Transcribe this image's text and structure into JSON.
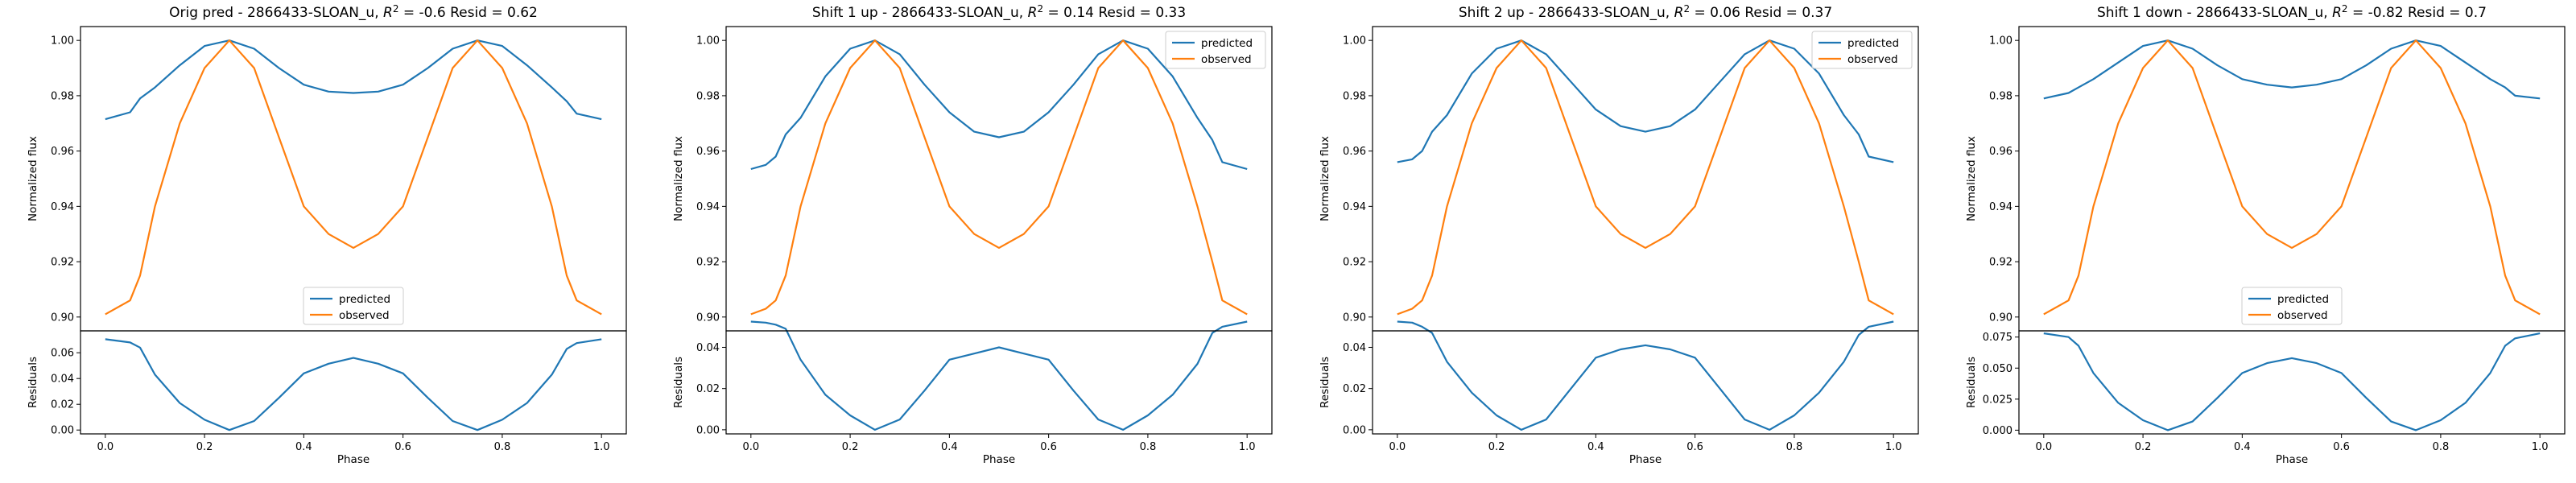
{
  "colors": {
    "predicted": "#1f77b4",
    "observed": "#ff7f0e",
    "axis": "#000000",
    "legend_border": "#cccccc"
  },
  "chart_data": [
    {
      "type": "line",
      "title": "Orig pred - 2866433-SLOAN_u, $R^2 = $-0.6 Resid = 0.62",
      "title_prefix": "Orig pred - 2866433-SLOAN_u, ",
      "title_r2_value": " = -0.6 Resid = 0.62",
      "xlabel": "Phase",
      "ylabel": "Normalized flux",
      "resid_ylabel": "Residuals",
      "xlim": [
        -0.05,
        1.05
      ],
      "ylim": [
        0.895,
        1.005
      ],
      "resid_ylim": [
        -0.003,
        0.077
      ],
      "xticks": [
        "0.0",
        "0.2",
        "0.4",
        "0.6",
        "0.8",
        "1.0"
      ],
      "xtick_values": [
        0,
        0.2,
        0.4,
        0.6,
        0.8,
        1.0
      ],
      "yticks": [
        "0.90",
        "0.92",
        "0.94",
        "0.96",
        "0.98",
        "1.00"
      ],
      "ytick_values": [
        0.9,
        0.92,
        0.94,
        0.96,
        0.98,
        1.0
      ],
      "resid_yticks": [
        "0.00",
        "0.02",
        "0.04",
        "0.06"
      ],
      "resid_ytick_values": [
        0.0,
        0.02,
        0.04,
        0.06
      ],
      "legend_position": "lower-center",
      "x": [
        0.0,
        0.05,
        0.07,
        0.1,
        0.15,
        0.2,
        0.25,
        0.3,
        0.35,
        0.4,
        0.45,
        0.5,
        0.55,
        0.6,
        0.65,
        0.7,
        0.75,
        0.8,
        0.85,
        0.9,
        0.93,
        0.95,
        1.0
      ],
      "series": [
        {
          "name": "predicted",
          "values": [
            0.9715,
            0.974,
            0.979,
            0.983,
            0.991,
            0.998,
            1.0,
            0.997,
            0.99,
            0.984,
            0.9815,
            0.981,
            0.9815,
            0.984,
            0.99,
            0.997,
            1.0,
            0.998,
            0.991,
            0.983,
            0.978,
            0.9735,
            0.9715
          ]
        },
        {
          "name": "observed",
          "values": [
            0.901,
            0.906,
            0.915,
            0.94,
            0.97,
            0.99,
            1.0,
            0.99,
            0.965,
            0.94,
            0.93,
            0.925,
            0.93,
            0.94,
            0.965,
            0.99,
            1.0,
            0.99,
            0.97,
            0.94,
            0.915,
            0.906,
            0.901
          ]
        }
      ],
      "residuals": [
        0.0705,
        0.068,
        0.064,
        0.043,
        0.021,
        0.008,
        0.0,
        0.007,
        0.025,
        0.044,
        0.0515,
        0.056,
        0.0515,
        0.044,
        0.025,
        0.007,
        0.0,
        0.008,
        0.021,
        0.043,
        0.063,
        0.0675,
        0.0705
      ]
    },
    {
      "type": "line",
      "title": "Shift 1 up - 2866433-SLOAN_u, $R^2 = $0.14 Resid = 0.33",
      "title_prefix": "Shift 1 up - 2866433-SLOAN_u, ",
      "title_r2_value": " = 0.14 Resid = 0.33",
      "xlabel": "Phase",
      "ylabel": "Normalized flux",
      "resid_ylabel": "Residuals",
      "xlim": [
        -0.05,
        1.05
      ],
      "ylim": [
        0.895,
        1.005
      ],
      "resid_ylim": [
        -0.002,
        0.048
      ],
      "xticks": [
        "0.0",
        "0.2",
        "0.4",
        "0.6",
        "0.8",
        "1.0"
      ],
      "xtick_values": [
        0,
        0.2,
        0.4,
        0.6,
        0.8,
        1.0
      ],
      "yticks": [
        "0.90",
        "0.92",
        "0.94",
        "0.96",
        "0.98",
        "1.00"
      ],
      "ytick_values": [
        0.9,
        0.92,
        0.94,
        0.96,
        0.98,
        1.0
      ],
      "resid_yticks": [
        "0.00",
        "0.02",
        "0.04"
      ],
      "resid_ytick_values": [
        0.0,
        0.02,
        0.04
      ],
      "legend_position": "upper-right",
      "x": [
        0.0,
        0.03,
        0.05,
        0.07,
        0.1,
        0.15,
        0.2,
        0.25,
        0.3,
        0.35,
        0.4,
        0.45,
        0.5,
        0.55,
        0.6,
        0.65,
        0.7,
        0.75,
        0.8,
        0.85,
        0.9,
        0.93,
        0.95,
        1.0
      ],
      "series": [
        {
          "name": "predicted",
          "values": [
            0.9535,
            0.955,
            0.958,
            0.966,
            0.972,
            0.987,
            0.997,
            1.0,
            0.995,
            0.984,
            0.974,
            0.967,
            0.965,
            0.967,
            0.974,
            0.984,
            0.995,
            1.0,
            0.997,
            0.987,
            0.972,
            0.964,
            0.956,
            0.9535
          ]
        },
        {
          "name": "observed",
          "values": [
            0.901,
            0.903,
            0.906,
            0.915,
            0.94,
            0.97,
            0.99,
            1.0,
            0.99,
            0.965,
            0.94,
            0.93,
            0.925,
            0.93,
            0.94,
            0.965,
            0.99,
            1.0,
            0.99,
            0.97,
            0.94,
            0.92,
            0.906,
            0.901
          ]
        }
      ],
      "residuals": [
        0.0525,
        0.052,
        0.051,
        0.049,
        0.034,
        0.017,
        0.007,
        0.0,
        0.005,
        0.019,
        0.034,
        0.037,
        0.04,
        0.037,
        0.034,
        0.019,
        0.005,
        0.0,
        0.007,
        0.017,
        0.032,
        0.047,
        0.05,
        0.0525
      ]
    },
    {
      "type": "line",
      "title": "Shift 2 up - 2866433-SLOAN_u, $R^2 = $0.06 Resid = 0.37",
      "title_prefix": "Shift 2 up - 2866433-SLOAN_u, ",
      "title_r2_value": " = 0.06 Resid = 0.37",
      "xlabel": "Phase",
      "ylabel": "Normalized flux",
      "resid_ylabel": "Residuals",
      "xlim": [
        -0.05,
        1.05
      ],
      "ylim": [
        0.895,
        1.005
      ],
      "resid_ylim": [
        -0.002,
        0.048
      ],
      "xticks": [
        "0.0",
        "0.2",
        "0.4",
        "0.6",
        "0.8",
        "1.0"
      ],
      "xtick_values": [
        0,
        0.2,
        0.4,
        0.6,
        0.8,
        1.0
      ],
      "yticks": [
        "0.90",
        "0.92",
        "0.94",
        "0.96",
        "0.98",
        "1.00"
      ],
      "ytick_values": [
        0.9,
        0.92,
        0.94,
        0.96,
        0.98,
        1.0
      ],
      "resid_yticks": [
        "0.00",
        "0.02",
        "0.04"
      ],
      "resid_ytick_values": [
        0.0,
        0.02,
        0.04
      ],
      "legend_position": "upper-right",
      "x": [
        0.0,
        0.03,
        0.05,
        0.07,
        0.1,
        0.15,
        0.2,
        0.25,
        0.3,
        0.35,
        0.4,
        0.45,
        0.5,
        0.55,
        0.6,
        0.65,
        0.7,
        0.75,
        0.8,
        0.85,
        0.9,
        0.93,
        0.95,
        1.0
      ],
      "series": [
        {
          "name": "predicted",
          "values": [
            0.956,
            0.957,
            0.96,
            0.967,
            0.973,
            0.988,
            0.997,
            1.0,
            0.995,
            0.985,
            0.975,
            0.969,
            0.967,
            0.969,
            0.975,
            0.985,
            0.995,
            1.0,
            0.997,
            0.988,
            0.973,
            0.966,
            0.958,
            0.956
          ]
        },
        {
          "name": "observed",
          "values": [
            0.901,
            0.903,
            0.906,
            0.915,
            0.94,
            0.97,
            0.99,
            1.0,
            0.99,
            0.965,
            0.94,
            0.93,
            0.925,
            0.93,
            0.94,
            0.965,
            0.99,
            1.0,
            0.99,
            0.97,
            0.94,
            0.92,
            0.906,
            0.901
          ]
        }
      ],
      "residuals": [
        0.0525,
        0.052,
        0.05,
        0.047,
        0.033,
        0.018,
        0.007,
        0.0,
        0.005,
        0.02,
        0.035,
        0.039,
        0.041,
        0.039,
        0.035,
        0.02,
        0.005,
        0.0,
        0.007,
        0.018,
        0.033,
        0.046,
        0.05,
        0.0525
      ]
    },
    {
      "type": "line",
      "title": "Shift 1 down - 2866433-SLOAN_u, $R^2 = $-0.82 Resid = 0.7",
      "title_prefix": "Shift 1 down - 2866433-SLOAN_u, ",
      "title_r2_value": " = -0.82 Resid = 0.7",
      "xlabel": "Phase",
      "ylabel": "Normalized flux",
      "resid_ylabel": "Residuals",
      "xlim": [
        -0.05,
        1.05
      ],
      "ylim": [
        0.895,
        1.005
      ],
      "resid_ylim": [
        -0.003,
        0.08
      ],
      "xticks": [
        "0.0",
        "0.2",
        "0.4",
        "0.6",
        "0.8",
        "1.0"
      ],
      "xtick_values": [
        0,
        0.2,
        0.4,
        0.6,
        0.8,
        1.0
      ],
      "yticks": [
        "0.90",
        "0.92",
        "0.94",
        "0.96",
        "0.98",
        "1.00"
      ],
      "ytick_values": [
        0.9,
        0.92,
        0.94,
        0.96,
        0.98,
        1.0
      ],
      "resid_yticks": [
        "0.000",
        "0.025",
        "0.050",
        "0.075"
      ],
      "resid_ytick_values": [
        0.0,
        0.025,
        0.05,
        0.075
      ],
      "legend_position": "lower-center",
      "x": [
        0.0,
        0.05,
        0.07,
        0.1,
        0.15,
        0.2,
        0.25,
        0.3,
        0.35,
        0.4,
        0.45,
        0.5,
        0.55,
        0.6,
        0.65,
        0.7,
        0.75,
        0.8,
        0.85,
        0.9,
        0.93,
        0.95,
        1.0
      ],
      "series": [
        {
          "name": "predicted",
          "values": [
            0.979,
            0.981,
            0.983,
            0.986,
            0.992,
            0.998,
            1.0,
            0.997,
            0.991,
            0.986,
            0.984,
            0.983,
            0.984,
            0.986,
            0.991,
            0.997,
            1.0,
            0.998,
            0.992,
            0.986,
            0.983,
            0.98,
            0.979
          ]
        },
        {
          "name": "observed",
          "values": [
            0.901,
            0.906,
            0.915,
            0.94,
            0.97,
            0.99,
            1.0,
            0.99,
            0.965,
            0.94,
            0.93,
            0.925,
            0.93,
            0.94,
            0.965,
            0.99,
            1.0,
            0.99,
            0.97,
            0.94,
            0.915,
            0.906,
            0.901
          ]
        }
      ],
      "residuals": [
        0.078,
        0.075,
        0.068,
        0.046,
        0.022,
        0.008,
        0.0,
        0.007,
        0.026,
        0.046,
        0.054,
        0.058,
        0.054,
        0.046,
        0.026,
        0.007,
        0.0,
        0.008,
        0.022,
        0.046,
        0.068,
        0.074,
        0.078
      ]
    }
  ]
}
